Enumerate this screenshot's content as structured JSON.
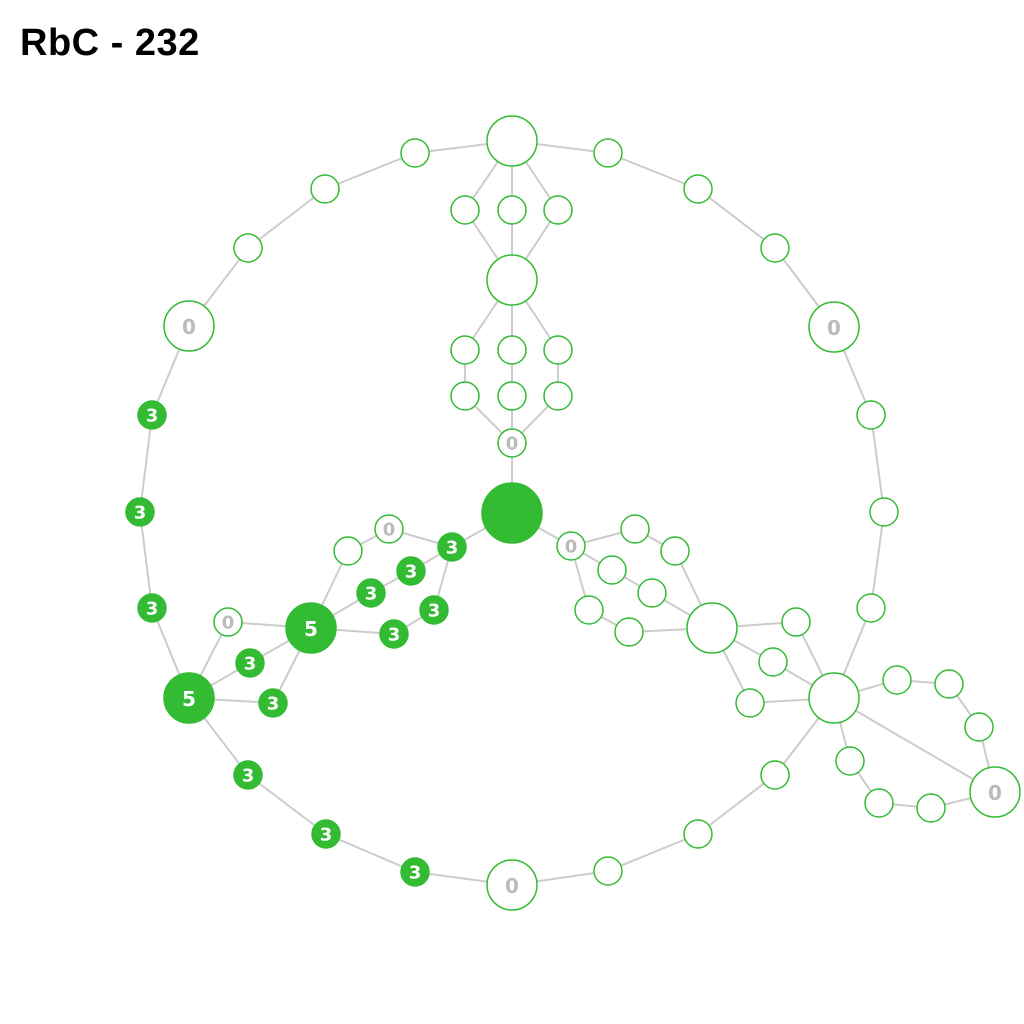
{
  "title": "RbC - 232",
  "colors": {
    "accent": "#33bb33",
    "edge": "#cccccc",
    "empty_label": "#bbbbbb",
    "filled_label": "#ffffff",
    "background": "#ffffff"
  }
}
